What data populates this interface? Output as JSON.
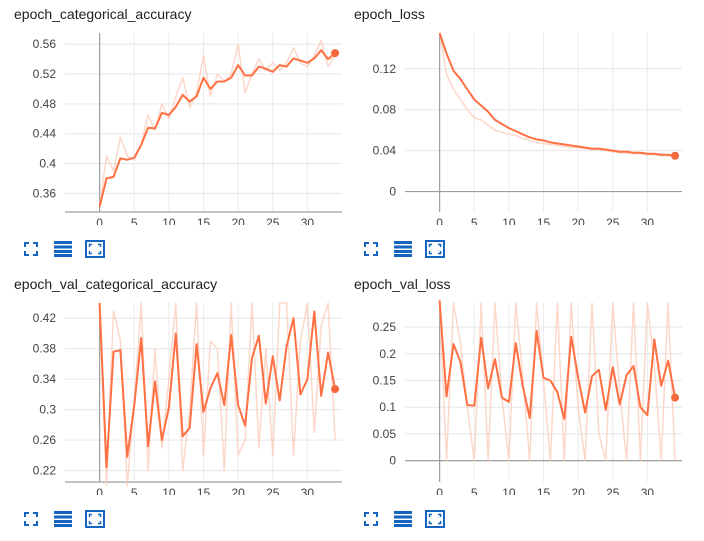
{
  "theme": {
    "accent": "#f4683b",
    "smoothed_color": "#ff7043",
    "raw_color": "#fbcbb9",
    "axis_color": "#9e9e9e",
    "icon_color": "#1565c0"
  },
  "toolbar_icons": [
    "expand-icon",
    "data-table-icon",
    "fit-domain-icon"
  ],
  "chart_data": [
    {
      "type": "line",
      "title": "epoch_categorical_accuracy",
      "xlim": [
        -5,
        35
      ],
      "ylim": [
        0.335,
        0.575
      ],
      "xticks": [
        0,
        5,
        10,
        15,
        20,
        25,
        30
      ],
      "yticks": [
        0.36,
        0.4,
        0.44,
        0.48,
        0.52,
        0.56
      ],
      "ytick_labels": [
        "0.36",
        "0.4",
        "0.44",
        "0.48",
        "0.52",
        "0.56"
      ],
      "series": [
        {
          "role": "raw",
          "x": [
            0,
            1,
            2,
            3,
            4,
            5,
            6,
            7,
            8,
            9,
            10,
            11,
            12,
            13,
            14,
            15,
            16,
            17,
            18,
            19,
            20,
            21,
            22,
            23,
            24,
            25,
            26,
            27,
            28,
            29,
            30,
            31,
            32,
            33,
            34
          ],
          "y": [
            0.342,
            0.41,
            0.39,
            0.435,
            0.41,
            0.405,
            0.425,
            0.465,
            0.445,
            0.48,
            0.46,
            0.49,
            0.515,
            0.475,
            0.495,
            0.545,
            0.49,
            0.52,
            0.51,
            0.52,
            0.56,
            0.495,
            0.52,
            0.54,
            0.525,
            0.535,
            0.525,
            0.535,
            0.555,
            0.535,
            0.53,
            0.545,
            0.565,
            0.53,
            0.545
          ]
        },
        {
          "role": "smoothed",
          "x": [
            0,
            1,
            2,
            3,
            4,
            5,
            6,
            7,
            8,
            9,
            10,
            11,
            12,
            13,
            14,
            15,
            16,
            17,
            18,
            19,
            20,
            21,
            22,
            23,
            24,
            25,
            26,
            27,
            28,
            29,
            30,
            31,
            32,
            33,
            34
          ],
          "y": [
            0.342,
            0.38,
            0.382,
            0.407,
            0.405,
            0.408,
            0.425,
            0.448,
            0.447,
            0.468,
            0.465,
            0.476,
            0.492,
            0.483,
            0.49,
            0.515,
            0.5,
            0.51,
            0.51,
            0.515,
            0.532,
            0.518,
            0.518,
            0.53,
            0.527,
            0.523,
            0.532,
            0.53,
            0.541,
            0.538,
            0.535,
            0.541,
            0.552,
            0.54,
            0.548
          ]
        }
      ]
    },
    {
      "type": "line",
      "title": "epoch_loss",
      "xlim": [
        -5,
        35
      ],
      "ylim": [
        -0.02,
        0.155
      ],
      "xticks": [
        0,
        5,
        10,
        15,
        20,
        25,
        30
      ],
      "yticks": [
        0,
        0.04,
        0.08,
        0.12
      ],
      "ytick_labels": [
        "0",
        "0.04",
        "0.08",
        "0.12"
      ],
      "series": [
        {
          "role": "raw",
          "x": [
            0,
            1,
            2,
            3,
            4,
            5,
            6,
            7,
            8,
            9,
            10,
            11,
            12,
            13,
            14,
            15,
            16,
            17,
            18,
            19,
            20,
            21,
            22,
            23,
            24,
            25,
            26,
            27,
            28,
            29,
            30,
            31,
            32,
            33,
            34
          ],
          "y": [
            0.155,
            0.115,
            0.1,
            0.09,
            0.08,
            0.072,
            0.07,
            0.065,
            0.06,
            0.058,
            0.056,
            0.055,
            0.052,
            0.05,
            0.048,
            0.047,
            0.046,
            0.045,
            0.044,
            0.043,
            0.043,
            0.042,
            0.041,
            0.041,
            0.04,
            0.039,
            0.038,
            0.038,
            0.037,
            0.037,
            0.036,
            0.036,
            0.035,
            0.035,
            0.034
          ]
        },
        {
          "role": "smoothed",
          "x": [
            0,
            1,
            2,
            3,
            4,
            5,
            6,
            7,
            8,
            9,
            10,
            11,
            12,
            13,
            14,
            15,
            16,
            17,
            18,
            19,
            20,
            21,
            22,
            23,
            24,
            25,
            26,
            27,
            28,
            29,
            30,
            31,
            32,
            33,
            34
          ],
          "y": [
            0.155,
            0.135,
            0.118,
            0.11,
            0.1,
            0.09,
            0.084,
            0.078,
            0.07,
            0.066,
            0.062,
            0.059,
            0.056,
            0.053,
            0.051,
            0.05,
            0.048,
            0.047,
            0.046,
            0.045,
            0.044,
            0.043,
            0.042,
            0.042,
            0.041,
            0.04,
            0.039,
            0.039,
            0.038,
            0.038,
            0.037,
            0.037,
            0.036,
            0.036,
            0.035
          ]
        }
      ]
    },
    {
      "type": "line",
      "title": "epoch_val_categorical_accuracy",
      "xlim": [
        -5,
        35
      ],
      "ylim": [
        0.205,
        0.44
      ],
      "xticks": [
        0,
        5,
        10,
        15,
        20,
        25,
        30
      ],
      "yticks": [
        0.22,
        0.26,
        0.3,
        0.34,
        0.38,
        0.42
      ],
      "ytick_labels": [
        "0.22",
        "0.26",
        "0.3",
        "0.34",
        "0.38",
        "0.42"
      ],
      "series": [
        {
          "role": "raw",
          "x": [
            0,
            1,
            2,
            3,
            4,
            5,
            6,
            7,
            8,
            9,
            10,
            11,
            12,
            13,
            14,
            15,
            16,
            17,
            18,
            19,
            20,
            21,
            22,
            23,
            24,
            25,
            26,
            27,
            28,
            29,
            30,
            31,
            32,
            33,
            34
          ],
          "y": [
            0.44,
            0.2,
            0.43,
            0.39,
            0.2,
            0.31,
            0.44,
            0.22,
            0.38,
            0.25,
            0.34,
            0.44,
            0.22,
            0.3,
            0.44,
            0.24,
            0.39,
            0.38,
            0.22,
            0.44,
            0.24,
            0.26,
            0.44,
            0.25,
            0.38,
            0.24,
            0.44,
            0.44,
            0.24,
            0.39,
            0.44,
            0.27,
            0.41,
            0.44,
            0.26
          ]
        },
        {
          "role": "smoothed",
          "x": [
            0,
            1,
            2,
            3,
            4,
            5,
            6,
            7,
            8,
            9,
            10,
            11,
            12,
            13,
            14,
            15,
            16,
            17,
            18,
            19,
            20,
            21,
            22,
            23,
            24,
            25,
            26,
            27,
            28,
            29,
            30,
            31,
            32,
            33,
            34
          ],
          "y": [
            0.44,
            0.224,
            0.376,
            0.378,
            0.238,
            0.306,
            0.394,
            0.252,
            0.337,
            0.26,
            0.303,
            0.4,
            0.265,
            0.276,
            0.386,
            0.297,
            0.328,
            0.348,
            0.306,
            0.398,
            0.306,
            0.279,
            0.368,
            0.397,
            0.308,
            0.37,
            0.312,
            0.383,
            0.42,
            0.32,
            0.34,
            0.429,
            0.318,
            0.375,
            0.327
          ]
        }
      ]
    },
    {
      "type": "line",
      "title": "epoch_val_loss",
      "xlim": [
        -5,
        35
      ],
      "ylim": [
        -0.04,
        0.295
      ],
      "xticks": [
        0,
        5,
        10,
        15,
        20,
        25,
        30
      ],
      "yticks": [
        0,
        0.05,
        0.1,
        0.15,
        0.2,
        0.25
      ],
      "ytick_labels": [
        "0",
        "0.05",
        "0.1",
        "0.15",
        "0.2",
        "0.25"
      ],
      "series": [
        {
          "role": "raw",
          "x": [
            0,
            1,
            2,
            3,
            4,
            5,
            6,
            7,
            8,
            9,
            10,
            11,
            12,
            13,
            14,
            15,
            16,
            17,
            18,
            19,
            20,
            21,
            22,
            23,
            24,
            25,
            26,
            27,
            28,
            29,
            30,
            31,
            32,
            33,
            34
          ],
          "y": [
            0.295,
            0.0,
            0.295,
            0.22,
            0.1,
            0.0,
            0.295,
            0.0,
            0.295,
            0.12,
            0.0,
            0.295,
            0.16,
            0.0,
            0.295,
            0.15,
            0.0,
            0.295,
            0.0,
            0.295,
            0.1,
            0.0,
            0.295,
            0.05,
            0.0,
            0.295,
            0.13,
            0.0,
            0.295,
            0.0,
            0.295,
            0.18,
            0.0,
            0.295,
            0.0
          ]
        },
        {
          "role": "smoothed",
          "x": [
            0,
            1,
            2,
            3,
            4,
            5,
            6,
            7,
            8,
            9,
            10,
            11,
            12,
            13,
            14,
            15,
            16,
            17,
            18,
            19,
            20,
            21,
            22,
            23,
            24,
            25,
            26,
            27,
            28,
            29,
            30,
            31,
            32,
            33,
            34
          ],
          "y": [
            0.3,
            0.12,
            0.218,
            0.185,
            0.104,
            0.103,
            0.23,
            0.135,
            0.19,
            0.118,
            0.11,
            0.22,
            0.14,
            0.08,
            0.243,
            0.155,
            0.15,
            0.128,
            0.078,
            0.232,
            0.156,
            0.09,
            0.158,
            0.17,
            0.095,
            0.175,
            0.105,
            0.16,
            0.177,
            0.1,
            0.085,
            0.227,
            0.14,
            0.187,
            0.118
          ]
        }
      ]
    }
  ]
}
